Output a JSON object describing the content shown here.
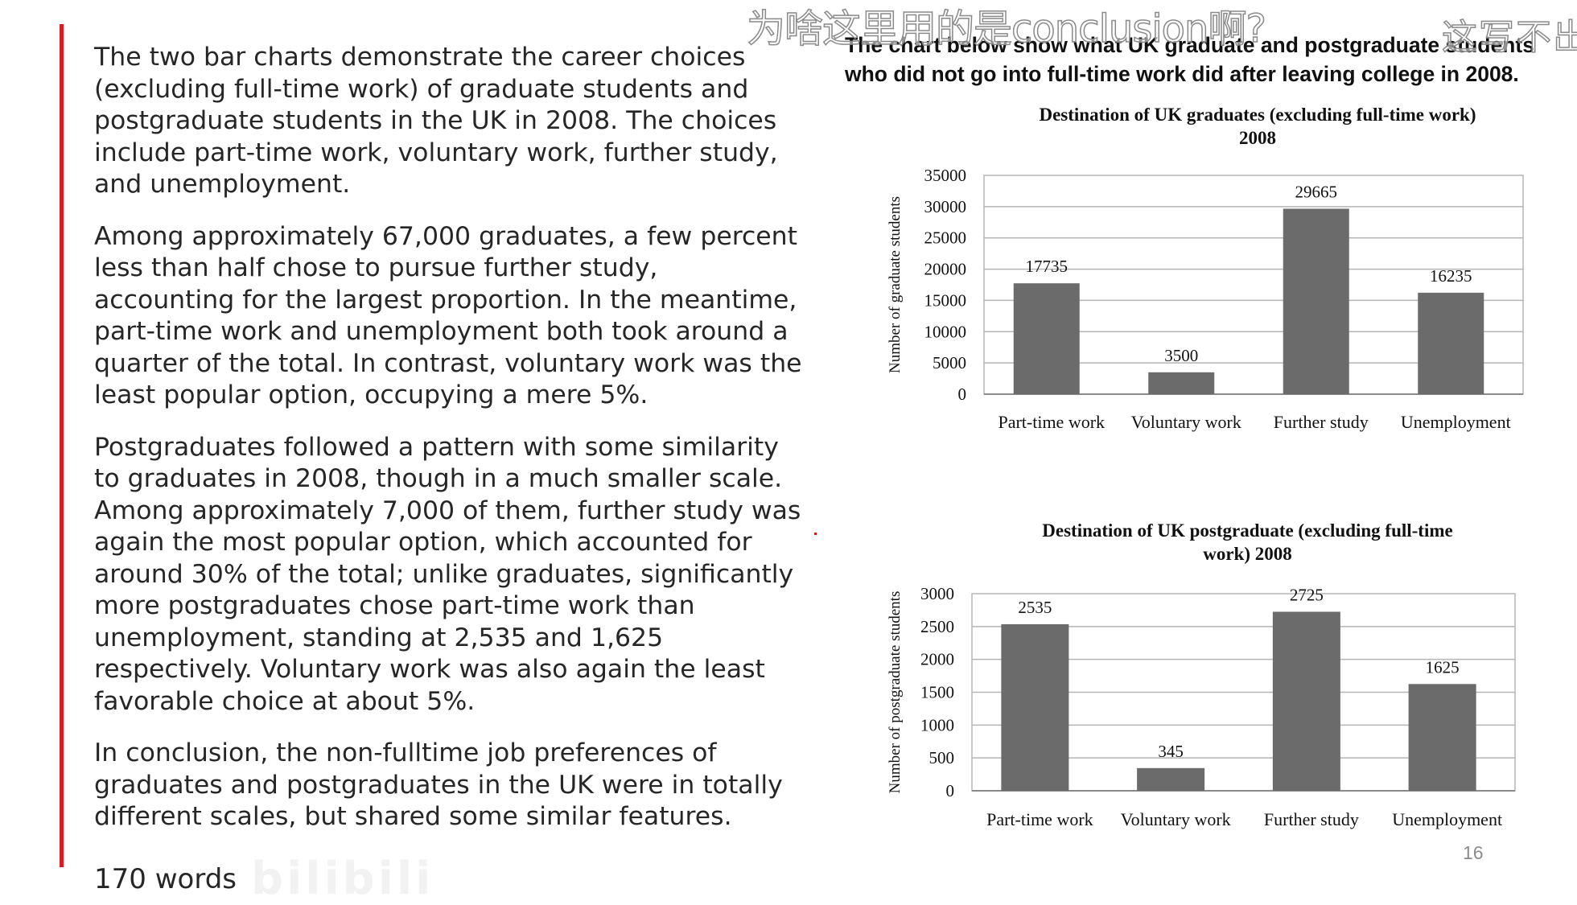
{
  "essay": {
    "paragraphs": [
      "The two bar charts demonstrate the career choices (excluding full-time work) of graduate students and postgraduate students in the UK in 2008. The choices include part-time work, voluntary work, further study, and unemployment.",
      "Among approximately 67,000 graduates, a few percent less than half chose to pursue further study, accounting for the largest proportion. In the meantime, part-time work and unemployment both took around a quarter of the total. In contrast, voluntary work was the least popular option, occupying a mere 5%.",
      "Postgraduates followed a pattern with some similarity to graduates in 2008, though in a much smaller scale. Among approximately 7,000 of them, further study was again the most popular option, which accounted for around 30% of the total; unlike graduates, significantly more postgraduates chose part-time work than unemployment, standing at 2,535 and 1,625 respectively. Voluntary work was also again the least favorable choice at about 5%.",
      "In conclusion, the non-fulltime job preferences of graduates and postgraduates in the UK were in totally different scales, but shared some similar features."
    ],
    "word_count": "170 words"
  },
  "prompt": {
    "line1": "The chart below show what UK graduate and postgraduate students",
    "line2": "who did not go into full-time work did after leaving college in 2008."
  },
  "overlay": {
    "comment": "为啥这里用的是conclusion啊?",
    "comment_partial": "这写不出"
  },
  "page_number": "16",
  "watermark": "bilibili",
  "colors": {
    "accent": "#d71d24",
    "bar": "#6b6b6b",
    "grid": "#b5b5b5"
  },
  "chart_data": [
    {
      "type": "bar",
      "title": "Destination of UK graduates (excluding full-time work) 2008",
      "title_lines": [
        "Destination of UK graduates (excluding full-time work)",
        "2008"
      ],
      "ylabel": "Number of graduate students",
      "xlabel": "",
      "categories": [
        "Part-time work",
        "Voluntary work",
        "Further study",
        "Unemployment"
      ],
      "values": [
        17735,
        3500,
        29665,
        16235
      ],
      "data_labels": [
        "17735",
        "3500",
        "29665",
        "16235"
      ],
      "ylim": [
        0,
        35000
      ],
      "yticks": [
        0,
        5000,
        10000,
        15000,
        20000,
        25000,
        30000,
        35000
      ],
      "grid": true,
      "legend": "none"
    },
    {
      "type": "bar",
      "title": "Destination of UK postgraduate (excluding full-time work) 2008",
      "title_lines": [
        "Destination of UK postgraduate (excluding full-time",
        "work) 2008"
      ],
      "ylabel": "Number of postgraduate students",
      "xlabel": "",
      "categories": [
        "Part-time work",
        "Voluntary work",
        "Further study",
        "Unemployment"
      ],
      "values": [
        2535,
        345,
        2725,
        1625
      ],
      "data_labels": [
        "2535",
        "345",
        "2725",
        "1625"
      ],
      "ylim": [
        0,
        3000
      ],
      "yticks": [
        0,
        500,
        1000,
        1500,
        2000,
        2500,
        3000
      ],
      "grid": true,
      "legend": "none"
    }
  ]
}
